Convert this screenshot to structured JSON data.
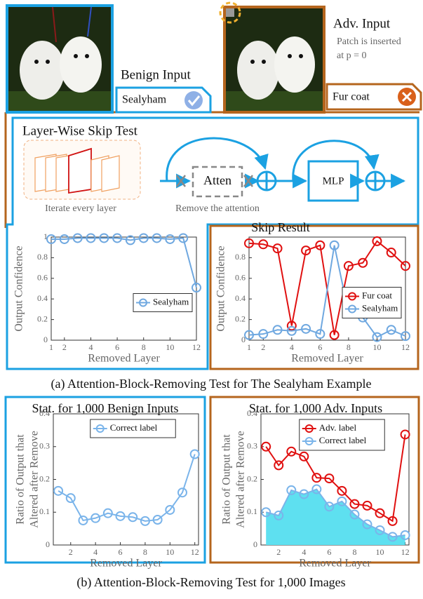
{
  "benign": {
    "title": "Benign Input",
    "label": "Sealyham"
  },
  "adv": {
    "title": "Adv. Input",
    "note": [
      "Patch is inserted",
      "at p = 0"
    ],
    "label": "Fur coat"
  },
  "diagram": {
    "title": "Layer-Wise Skip Test",
    "iterate": "Iterate every layer",
    "atten": "Atten",
    "remove": "Remove the attention",
    "mlp": "MLP"
  },
  "captions": [
    "(a) Attention-Block-Removing Test for The Sealyham Example",
    "(b) Attention-Block-Removing Test for 1,000 Images"
  ],
  "chart_data": [
    {
      "type": "line",
      "x_label": "Removed Layer",
      "y_label": "Output Confidence",
      "x": [
        1,
        2,
        3,
        4,
        5,
        6,
        7,
        8,
        9,
        10,
        11,
        12
      ],
      "xlim": [
        1,
        12
      ],
      "xticks": [
        1,
        2,
        4,
        6,
        8,
        10,
        12
      ],
      "ylim": [
        0,
        1
      ],
      "yticks": [
        0,
        0.2,
        0.4,
        0.6,
        0.8,
        1
      ],
      "legend": "center-right",
      "grid": false,
      "series": [
        {
          "name": "Sealyham",
          "color": "#6fa8e0",
          "values": [
            0.98,
            0.98,
            0.99,
            0.99,
            0.99,
            0.99,
            0.97,
            0.99,
            0.99,
            0.98,
            0.99,
            0.51
          ]
        }
      ]
    },
    {
      "type": "line",
      "title": "Skip Result",
      "x_label": "Removed Layer",
      "y_label": "Output Confidence",
      "x": [
        1,
        2,
        3,
        4,
        5,
        6,
        7,
        8,
        9,
        10,
        11,
        12
      ],
      "xlim": [
        1,
        12
      ],
      "xticks": [
        1,
        2,
        4,
        6,
        8,
        10,
        12
      ],
      "ylim": [
        0,
        1
      ],
      "yticks": [
        0,
        0.2,
        0.4,
        0.6,
        0.8
      ],
      "legend": "center-right",
      "grid": false,
      "series": [
        {
          "name": "Fur coat",
          "color": "#e01010",
          "values": [
            0.94,
            0.93,
            0.89,
            0.14,
            0.87,
            0.92,
            0.05,
            0.72,
            0.75,
            0.96,
            0.85,
            0.72
          ]
        },
        {
          "name": "Sealyham",
          "color": "#6fa8e0",
          "values": [
            0.05,
            0.06,
            0.1,
            0.09,
            0.11,
            0.06,
            0.92,
            0.26,
            0.22,
            0.03,
            0.1,
            0.04
          ]
        }
      ]
    },
    {
      "type": "line",
      "title": "Stat. for 1,000 Benign Inputs",
      "x_label": "Removed Layer",
      "y_label": [
        "Ratio of Output that",
        "Altered after Remove"
      ],
      "x": [
        1,
        2,
        3,
        4,
        5,
        6,
        7,
        8,
        9,
        10,
        11,
        12
      ],
      "xlim": [
        0.6,
        12.3
      ],
      "xticks": [
        2,
        4,
        6,
        8,
        10,
        12
      ],
      "ylim": [
        0,
        0.4
      ],
      "yticks": [
        0,
        0.1,
        0.2,
        0.3,
        0.4
      ],
      "legend": "top-center",
      "grid": false,
      "series": [
        {
          "name": "Correct label",
          "color": "#7ab4ea",
          "values": [
            0.165,
            0.143,
            0.075,
            0.082,
            0.097,
            0.088,
            0.085,
            0.073,
            0.077,
            0.107,
            0.16,
            0.277
          ]
        }
      ]
    },
    {
      "type": "line",
      "title": "Stat. for 1,000 Adv. Inputs",
      "x_label": "Removed Layer",
      "y_label": [
        "Ratio of Output that",
        "Altered after Remove"
      ],
      "x": [
        1,
        2,
        3,
        4,
        5,
        6,
        7,
        8,
        9,
        10,
        11,
        12
      ],
      "xlim": [
        0.6,
        12.3
      ],
      "xticks": [
        2,
        4,
        6,
        8,
        10,
        12
      ],
      "ylim": [
        0,
        0.4
      ],
      "yticks": [
        0,
        0.1,
        0.2,
        0.3,
        0.4
      ],
      "legend": "top-center",
      "grid": false,
      "series": [
        {
          "name": "Adv. label",
          "color": "#e01010",
          "values": [
            0.3,
            0.243,
            0.285,
            0.27,
            0.205,
            0.203,
            0.165,
            0.125,
            0.12,
            0.097,
            0.073,
            0.337
          ]
        },
        {
          "name": "Correct label",
          "color": "#7ab4ea",
          "fill": "#5ee0f0",
          "values": [
            0.1,
            0.09,
            0.167,
            0.155,
            0.17,
            0.117,
            0.133,
            0.093,
            0.063,
            0.045,
            0.025,
            0.03
          ]
        }
      ]
    }
  ]
}
